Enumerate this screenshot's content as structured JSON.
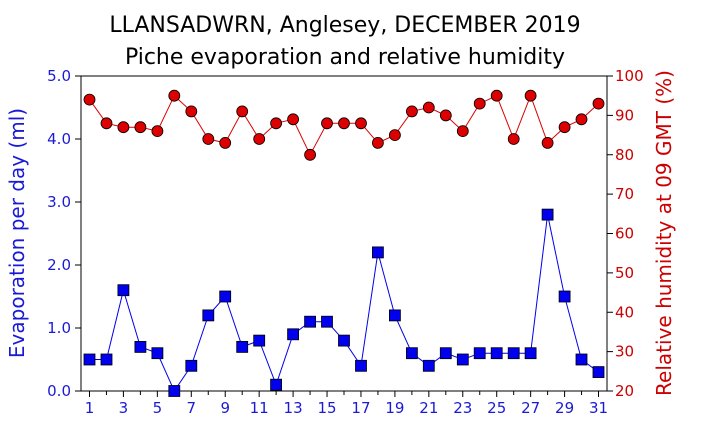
{
  "chart_data": {
    "type": "line",
    "title": "LLANSADWRN, Anglesey, DECEMBER 2019",
    "subtitle": "Piche evaporation and relative humidity",
    "ylabel": "Evaporation per day (ml)",
    "y2label": "Relative humidity at 09 GMT (%)",
    "ylim": [
      0,
      5
    ],
    "y2lim": [
      20,
      100
    ],
    "yticks": [
      "0.0",
      "1.0",
      "2.0",
      "3.0",
      "4.0",
      "5.0"
    ],
    "y2ticks": [
      "20",
      "30",
      "40",
      "50",
      "60",
      "70",
      "80",
      "90",
      "100"
    ],
    "xlim": [
      0.5,
      31.5
    ],
    "xticks": [
      "1",
      "3",
      "5",
      "7",
      "9",
      "11",
      "13",
      "15",
      "17",
      "19",
      "21",
      "23",
      "25",
      "27",
      "29",
      "31"
    ],
    "grid": false,
    "x": [
      1,
      2,
      3,
      4,
      5,
      6,
      7,
      8,
      9,
      10,
      11,
      12,
      13,
      14,
      15,
      16,
      17,
      18,
      19,
      20,
      21,
      22,
      23,
      24,
      25,
      26,
      27,
      28,
      29,
      30,
      31
    ],
    "series": [
      {
        "axis": "left",
        "marker": "square",
        "color": "#0000ee",
        "values": [
          0.5,
          0.5,
          1.6,
          0.7,
          0.6,
          0.0,
          0.4,
          1.2,
          1.5,
          0.7,
          0.8,
          0.1,
          0.9,
          1.1,
          1.1,
          0.8,
          0.4,
          2.2,
          1.2,
          0.6,
          0.4,
          0.6,
          0.5,
          0.6,
          0.6,
          0.6,
          0.6,
          2.8,
          1.5,
          0.5,
          0.3
        ]
      },
      {
        "axis": "right",
        "marker": "circle",
        "color": "#dd0000",
        "values": [
          94,
          88,
          87,
          87,
          86,
          95,
          91,
          84,
          83,
          91,
          84,
          88,
          89,
          80,
          88,
          88,
          88,
          83,
          85,
          91,
          92,
          90,
          86,
          93,
          95,
          84,
          95,
          83,
          87,
          89,
          93
        ]
      }
    ]
  }
}
